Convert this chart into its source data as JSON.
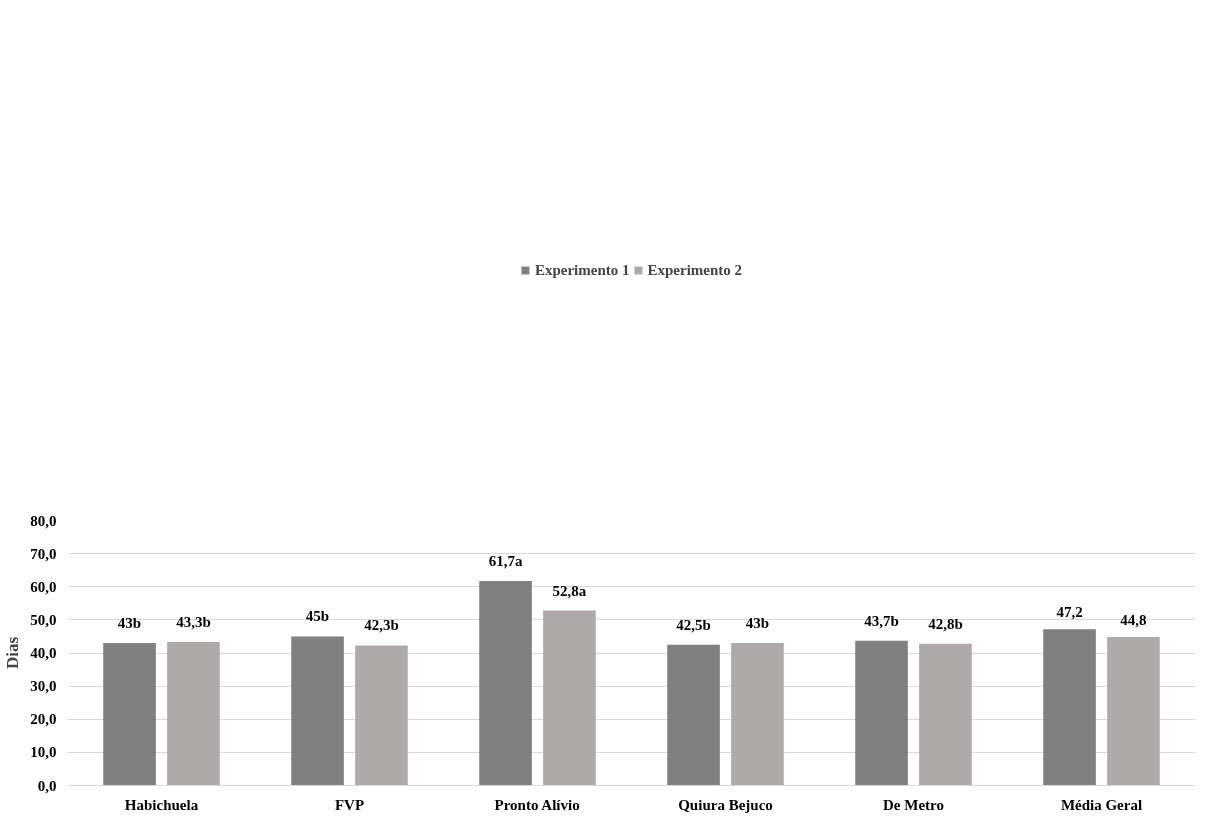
{
  "chart_data": {
    "type": "bar",
    "ylabel": "Dias",
    "categories": [
      "Habichuela",
      "FVP",
      "Pronto Alívio",
      "Quiura Bejuco",
      "De Metro",
      "Média Geral"
    ],
    "series": [
      {
        "name": "Experimento 1",
        "color": "#808080",
        "values": [
          43,
          45,
          61.7,
          42.5,
          43.7,
          47.2
        ],
        "value_labels": [
          "43b",
          "45b",
          "61,7a",
          "42,5b",
          "43,7b",
          "47,2"
        ]
      },
      {
        "name": "Experimento 2",
        "color": "#aeaaaa",
        "values": [
          43.3,
          42.3,
          52.8,
          43,
          42.8,
          44.8
        ],
        "value_labels": [
          "43,3b",
          "42,3b",
          "52,8a",
          "43b",
          "42,8b",
          "44,8"
        ]
      }
    ],
    "ylim": [
      0,
      80
    ],
    "yticks": [
      {
        "value": 0,
        "label": "0,0"
      },
      {
        "value": 10,
        "label": "10,0"
      },
      {
        "value": 20,
        "label": "20,0"
      },
      {
        "value": 30,
        "label": "30,0"
      },
      {
        "value": 40,
        "label": "40,0"
      },
      {
        "value": 50,
        "label": "50,0"
      },
      {
        "value": 60,
        "label": "60,0"
      },
      {
        "value": 70,
        "label": "70,0"
      },
      {
        "value": 80,
        "label": "80,0"
      }
    ],
    "grid": "y",
    "legend": "top"
  }
}
